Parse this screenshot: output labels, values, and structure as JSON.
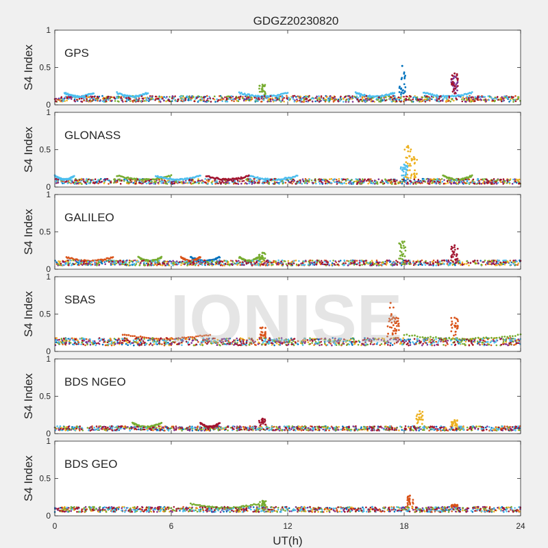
{
  "title": "GDGZ20230820",
  "watermark": "IONISE",
  "xlabel": "UT(h)",
  "ylabel": "S4 Index",
  "x_ticks": [
    0,
    6,
    12,
    18,
    24
  ],
  "y_ticks": [
    0,
    0.5,
    1
  ],
  "colors": [
    "#0072bd",
    "#d95319",
    "#edb120",
    "#7e2f8e",
    "#77ac30",
    "#4dbeee",
    "#a2142f"
  ],
  "chart_data": [
    {
      "type": "scatter",
      "panel_label": "GPS",
      "xlim": [
        0,
        24
      ],
      "ylim": [
        0,
        1
      ],
      "baseline": [
        0.04,
        0.12
      ],
      "arcs": [
        [
          0.5,
          2.0,
          5
        ],
        [
          3.2,
          4.8,
          5
        ],
        [
          9.5,
          12.0,
          5
        ],
        [
          15.5,
          17.5,
          5
        ],
        [
          19.0,
          21.5,
          5
        ]
      ],
      "spikes": [
        {
          "x": 17.9,
          "y_max": 0.52,
          "color": 0
        },
        {
          "x": 10.7,
          "y_max": 0.27,
          "color": 4
        },
        {
          "x": 20.6,
          "y_max": 0.42,
          "color": 6
        },
        {
          "x": 20.6,
          "y_max": 0.38,
          "color": 3
        }
      ]
    },
    {
      "type": "scatter",
      "panel_label": "GLONASS",
      "xlim": [
        0,
        24
      ],
      "ylim": [
        0,
        1
      ],
      "baseline": [
        0.04,
        0.11
      ],
      "arcs": [
        [
          0.0,
          1.0,
          5
        ],
        [
          3.2,
          6.0,
          4
        ],
        [
          5.2,
          7.5,
          5
        ],
        [
          7.8,
          10.0,
          6
        ],
        [
          10.0,
          12.5,
          5
        ],
        [
          20.0,
          21.5,
          4
        ]
      ],
      "spikes": [
        {
          "x": 18.2,
          "y_max": 0.55,
          "color": 2
        },
        {
          "x": 18.5,
          "y_max": 0.4,
          "color": 2
        },
        {
          "x": 18.0,
          "y_max": 0.3,
          "color": 5
        }
      ]
    },
    {
      "type": "scatter",
      "panel_label": "GALILEO",
      "xlim": [
        0,
        24
      ],
      "ylim": [
        0,
        1
      ],
      "baseline": [
        0.05,
        0.12
      ],
      "arcs": [
        [
          0.6,
          3.0,
          1
        ],
        [
          4.3,
          5.5,
          4
        ],
        [
          6.5,
          7.5,
          1
        ],
        [
          7.0,
          8.5,
          0
        ],
        [
          9.5,
          10.5,
          4
        ]
      ],
      "spikes": [
        {
          "x": 17.9,
          "y_max": 0.37,
          "color": 4
        },
        {
          "x": 10.7,
          "y_max": 0.22,
          "color": 4
        },
        {
          "x": 20.6,
          "y_max": 0.32,
          "color": 6
        }
      ]
    },
    {
      "type": "scatter",
      "panel_label": "SBAS",
      "xlim": [
        0,
        24
      ],
      "ylim": [
        0,
        1
      ],
      "baseline": [
        0.08,
        0.18
      ],
      "arcs": [
        [
          3.5,
          8.0,
          1
        ],
        [
          18.0,
          24.0,
          4
        ]
      ],
      "spikes": [
        {
          "x": 17.3,
          "y_max": 0.65,
          "color": 1
        },
        {
          "x": 17.6,
          "y_max": 0.45,
          "color": 1
        },
        {
          "x": 10.7,
          "y_max": 0.32,
          "color": 1
        },
        {
          "x": 20.6,
          "y_max": 0.45,
          "color": 1
        }
      ]
    },
    {
      "type": "scatter",
      "panel_label": "BDS NGEO",
      "xlim": [
        0,
        24
      ],
      "ylim": [
        0,
        1
      ],
      "baseline": [
        0.04,
        0.1
      ],
      "arcs": [
        [
          4.0,
          5.5,
          4
        ],
        [
          7.5,
          8.5,
          6
        ]
      ],
      "spikes": [
        {
          "x": 18.8,
          "y_max": 0.3,
          "color": 2
        },
        {
          "x": 10.7,
          "y_max": 0.2,
          "color": 6
        },
        {
          "x": 20.6,
          "y_max": 0.18,
          "color": 2
        }
      ]
    },
    {
      "type": "scatter",
      "panel_label": "BDS GEO",
      "xlim": [
        0,
        24
      ],
      "ylim": [
        0,
        1
      ],
      "baseline": [
        0.05,
        0.12
      ],
      "arcs": [
        [
          7.0,
          10.5,
          4
        ]
      ],
      "spikes": [
        {
          "x": 18.3,
          "y_max": 0.27,
          "color": 1
        },
        {
          "x": 10.7,
          "y_max": 0.2,
          "color": 4
        },
        {
          "x": 20.6,
          "y_max": 0.15,
          "color": 1
        }
      ]
    }
  ]
}
